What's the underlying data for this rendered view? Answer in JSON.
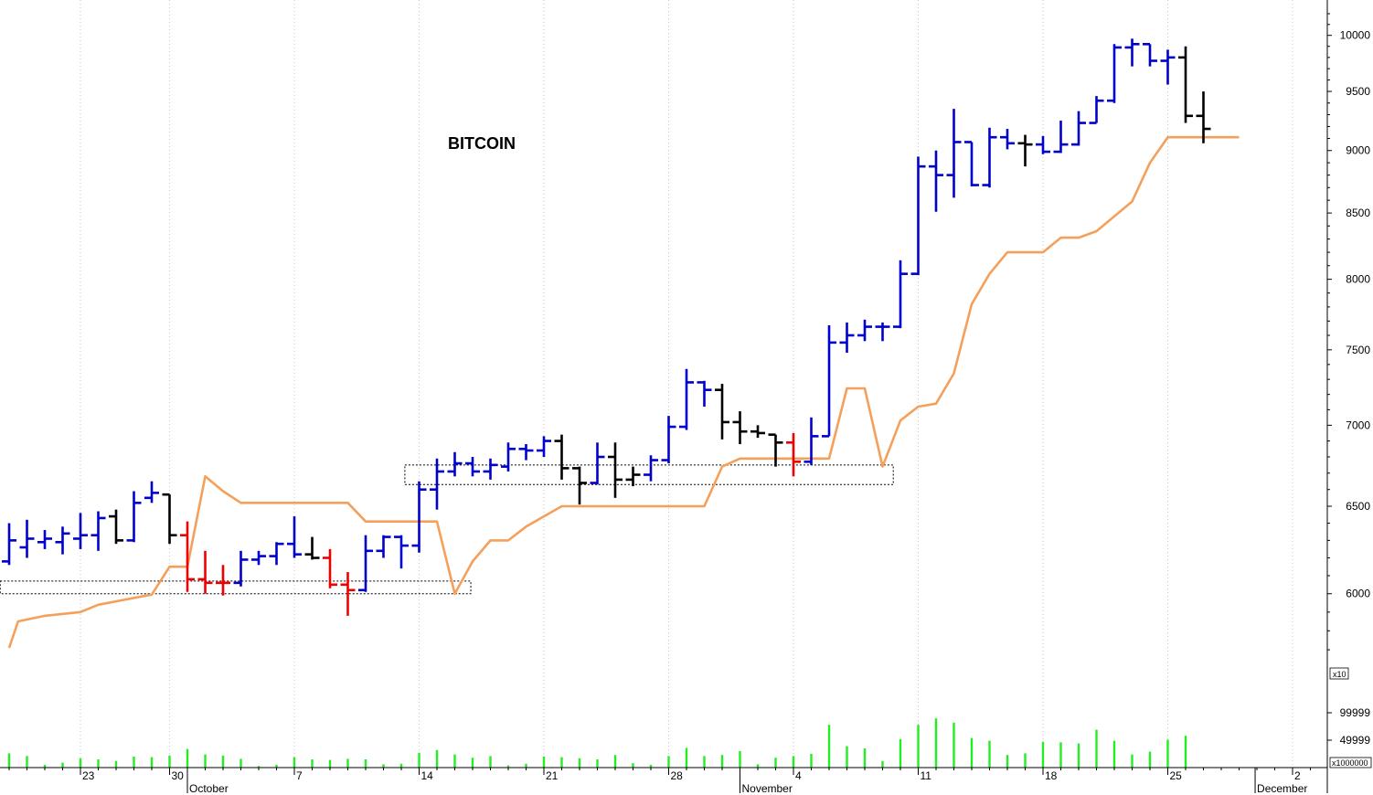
{
  "colors": {
    "up": "#0000cc",
    "down": "#ee0000",
    "neutral": "#000000",
    "trailing_stop": "#f5a05a",
    "volume": "#22ee22",
    "grid": "#c8c8c8",
    "zone_border": "#000000"
  },
  "chart_data": {
    "type": "ohlc-bar",
    "title": "BITCOIN",
    "price_axis": {
      "scale": "log",
      "ylim": [
        5620,
        10260
      ],
      "ticks": [
        6000,
        6500,
        7000,
        7500,
        8000,
        8500,
        9000,
        9500,
        10000
      ]
    },
    "volume_axis": {
      "multiplier_label": "x10",
      "unit_label": "x1000000",
      "ylim": [
        0,
        175000
      ],
      "ticks": [
        {
          "value": 49999,
          "label": "49999"
        },
        {
          "value": 99999,
          "label": "99999"
        }
      ]
    },
    "date_axis": {
      "day_ticks": [
        {
          "bar": 4,
          "label": "23"
        },
        {
          "bar": 9,
          "label": "30"
        },
        {
          "bar": 16,
          "label": "7"
        },
        {
          "bar": 23,
          "label": "14"
        },
        {
          "bar": 30,
          "label": "21"
        },
        {
          "bar": 37,
          "label": "28"
        },
        {
          "bar": 44,
          "label": "4"
        },
        {
          "bar": 51,
          "label": "11"
        },
        {
          "bar": 58,
          "label": "18"
        },
        {
          "bar": 65,
          "label": "25"
        },
        {
          "bar": 72,
          "label": "2"
        }
      ],
      "month_ticks": [
        {
          "bar": 10,
          "label": "October"
        },
        {
          "bar": 41,
          "label": "November"
        },
        {
          "bar": 69.9,
          "label": "December"
        }
      ]
    },
    "bars": [
      {
        "o": 6180,
        "h": 6400,
        "l": 6160,
        "c": 6300,
        "t": "up",
        "v": 26000
      },
      {
        "o": 6260,
        "h": 6420,
        "l": 6200,
        "c": 6310,
        "t": "up",
        "v": 21000
      },
      {
        "o": 6290,
        "h": 6360,
        "l": 6250,
        "c": 6310,
        "t": "up",
        "v": 5000
      },
      {
        "o": 6290,
        "h": 6380,
        "l": 6220,
        "c": 6340,
        "t": "up",
        "v": 9000
      },
      {
        "o": 6310,
        "h": 6460,
        "l": 6250,
        "c": 6330,
        "t": "up",
        "v": 17000
      },
      {
        "o": 6330,
        "h": 6470,
        "l": 6240,
        "c": 6430,
        "t": "up",
        "v": 15000
      },
      {
        "o": 6440,
        "h": 6480,
        "l": 6280,
        "c": 6300,
        "t": "neutral",
        "v": 12000
      },
      {
        "o": 6300,
        "h": 6590,
        "l": 6290,
        "c": 6520,
        "t": "up",
        "v": 20000
      },
      {
        "o": 6550,
        "h": 6650,
        "l": 6520,
        "c": 6580,
        "t": "up",
        "v": 19000
      },
      {
        "o": 6570,
        "h": 6570,
        "l": 6280,
        "c": 6330,
        "t": "neutral",
        "v": 22000
      },
      {
        "o": 6330,
        "h": 6410,
        "l": 6010,
        "c": 6080,
        "t": "down",
        "v": 34000
      },
      {
        "o": 6080,
        "h": 6240,
        "l": 6000,
        "c": 6060,
        "t": "down",
        "v": 24000
      },
      {
        "o": 6060,
        "h": 6160,
        "l": 5990,
        "c": 6060,
        "t": "down",
        "v": 22000
      },
      {
        "o": 6060,
        "h": 6240,
        "l": 6040,
        "c": 6190,
        "t": "up",
        "v": 16000
      },
      {
        "o": 6190,
        "h": 6240,
        "l": 6160,
        "c": 6210,
        "t": "up",
        "v": 3000
      },
      {
        "o": 6210,
        "h": 6290,
        "l": 6160,
        "c": 6280,
        "t": "up",
        "v": 5000
      },
      {
        "o": 6280,
        "h": 6440,
        "l": 6200,
        "c": 6220,
        "t": "up",
        "v": 19000
      },
      {
        "o": 6220,
        "h": 6320,
        "l": 6190,
        "c": 6200,
        "t": "neutral",
        "v": 15000
      },
      {
        "o": 6200,
        "h": 6250,
        "l": 6030,
        "c": 6050,
        "t": "down",
        "v": 14000
      },
      {
        "o": 6050,
        "h": 6120,
        "l": 5880,
        "c": 6020,
        "t": "down",
        "v": 16000
      },
      {
        "o": 6020,
        "h": 6330,
        "l": 6010,
        "c": 6240,
        "t": "up",
        "v": 15000
      },
      {
        "o": 6240,
        "h": 6330,
        "l": 6200,
        "c": 6320,
        "t": "up",
        "v": 6000
      },
      {
        "o": 6320,
        "h": 6330,
        "l": 6140,
        "c": 6270,
        "t": "up",
        "v": 7000
      },
      {
        "o": 6270,
        "h": 6650,
        "l": 6230,
        "c": 6600,
        "t": "up",
        "v": 27000
      },
      {
        "o": 6600,
        "h": 6790,
        "l": 6480,
        "c": 6710,
        "t": "up",
        "v": 32000
      },
      {
        "o": 6710,
        "h": 6830,
        "l": 6680,
        "c": 6760,
        "t": "up",
        "v": 24000
      },
      {
        "o": 6760,
        "h": 6800,
        "l": 6680,
        "c": 6710,
        "t": "up",
        "v": 18000
      },
      {
        "o": 6710,
        "h": 6790,
        "l": 6660,
        "c": 6750,
        "t": "up",
        "v": 21000
      },
      {
        "o": 6740,
        "h": 6890,
        "l": 6710,
        "c": 6850,
        "t": "up",
        "v": 4000
      },
      {
        "o": 6850,
        "h": 6880,
        "l": 6780,
        "c": 6840,
        "t": "up",
        "v": 7000
      },
      {
        "o": 6840,
        "h": 6930,
        "l": 6800,
        "c": 6900,
        "t": "up",
        "v": 20000
      },
      {
        "o": 6900,
        "h": 6940,
        "l": 6660,
        "c": 6730,
        "t": "neutral",
        "v": 19000
      },
      {
        "o": 6730,
        "h": 6740,
        "l": 6510,
        "c": 6640,
        "t": "neutral",
        "v": 17000
      },
      {
        "o": 6640,
        "h": 6890,
        "l": 6630,
        "c": 6800,
        "t": "up",
        "v": 15000
      },
      {
        "o": 6800,
        "h": 6890,
        "l": 6550,
        "c": 6660,
        "t": "neutral",
        "v": 23000
      },
      {
        "o": 6660,
        "h": 6740,
        "l": 6620,
        "c": 6690,
        "t": "neutral",
        "v": 8000
      },
      {
        "o": 6690,
        "h": 6810,
        "l": 6650,
        "c": 6780,
        "t": "up",
        "v": 5000
      },
      {
        "o": 6780,
        "h": 7060,
        "l": 6760,
        "c": 6990,
        "t": "up",
        "v": 21000
      },
      {
        "o": 6990,
        "h": 7370,
        "l": 6970,
        "c": 7280,
        "t": "up",
        "v": 36000
      },
      {
        "o": 7280,
        "h": 7290,
        "l": 7120,
        "c": 7230,
        "t": "up",
        "v": 21000
      },
      {
        "o": 7230,
        "h": 7270,
        "l": 6910,
        "c": 7020,
        "t": "neutral",
        "v": 23000
      },
      {
        "o": 7020,
        "h": 7090,
        "l": 6880,
        "c": 6960,
        "t": "neutral",
        "v": 30000
      },
      {
        "o": 6960,
        "h": 7000,
        "l": 6920,
        "c": 6950,
        "t": "neutral",
        "v": 6000
      },
      {
        "o": 6940,
        "h": 6940,
        "l": 6740,
        "c": 6890,
        "t": "neutral",
        "v": 18000
      },
      {
        "o": 6890,
        "h": 6950,
        "l": 6680,
        "c": 6770,
        "t": "down",
        "v": 21000
      },
      {
        "o": 6770,
        "h": 7050,
        "l": 6750,
        "c": 6930,
        "t": "up",
        "v": 25000
      },
      {
        "o": 6930,
        "h": 7670,
        "l": 6930,
        "c": 7550,
        "t": "up",
        "v": 78000
      },
      {
        "o": 7550,
        "h": 7690,
        "l": 7480,
        "c": 7600,
        "t": "up",
        "v": 39000
      },
      {
        "o": 7600,
        "h": 7710,
        "l": 7560,
        "c": 7660,
        "t": "up",
        "v": 35000
      },
      {
        "o": 7660,
        "h": 7690,
        "l": 7560,
        "c": 7660,
        "t": "up",
        "v": 12000
      },
      {
        "o": 7660,
        "h": 8140,
        "l": 7650,
        "c": 8040,
        "t": "up",
        "v": 52000
      },
      {
        "o": 8040,
        "h": 8950,
        "l": 8030,
        "c": 8870,
        "t": "up",
        "v": 78000
      },
      {
        "o": 8870,
        "h": 9000,
        "l": 8510,
        "c": 8800,
        "t": "up",
        "v": 90000
      },
      {
        "o": 8800,
        "h": 9350,
        "l": 8620,
        "c": 9070,
        "t": "up",
        "v": 82000
      },
      {
        "o": 9070,
        "h": 9070,
        "l": 8710,
        "c": 8720,
        "t": "up",
        "v": 54000
      },
      {
        "o": 8720,
        "h": 9190,
        "l": 8700,
        "c": 9110,
        "t": "up",
        "v": 49000
      },
      {
        "o": 9110,
        "h": 9180,
        "l": 9010,
        "c": 9060,
        "t": "up",
        "v": 23000
      },
      {
        "o": 9060,
        "h": 9130,
        "l": 8870,
        "c": 9050,
        "t": "neutral",
        "v": 26000
      },
      {
        "o": 9050,
        "h": 9120,
        "l": 8970,
        "c": 8990,
        "t": "up",
        "v": 47000
      },
      {
        "o": 8990,
        "h": 9250,
        "l": 8980,
        "c": 9050,
        "t": "up",
        "v": 46000
      },
      {
        "o": 9050,
        "h": 9330,
        "l": 9040,
        "c": 9230,
        "t": "up",
        "v": 44000
      },
      {
        "o": 9230,
        "h": 9460,
        "l": 9230,
        "c": 9420,
        "t": "up",
        "v": 69000
      },
      {
        "o": 9420,
        "h": 9920,
        "l": 9400,
        "c": 9890,
        "t": "up",
        "v": 49000
      },
      {
        "o": 9890,
        "h": 9970,
        "l": 9720,
        "c": 9920,
        "t": "up",
        "v": 24000
      },
      {
        "o": 9920,
        "h": 9920,
        "l": 9720,
        "c": 9770,
        "t": "up",
        "v": 29000
      },
      {
        "o": 9770,
        "h": 9870,
        "l": 9560,
        "c": 9800,
        "t": "up",
        "v": 51000
      },
      {
        "o": 9800,
        "h": 9900,
        "l": 9230,
        "c": 9290,
        "t": "neutral",
        "v": 58000
      },
      {
        "o": 9290,
        "h": 9500,
        "l": 9060,
        "c": 9180,
        "t": "neutral",
        "v": 0
      }
    ],
    "trailing_stop": [
      [
        0,
        5710
      ],
      [
        0.5,
        5850
      ],
      [
        2,
        5880
      ],
      [
        4,
        5900
      ],
      [
        5,
        5940
      ],
      [
        8,
        5995
      ],
      [
        9,
        6150
      ],
      [
        10,
        6150
      ],
      [
        11,
        6680
      ],
      [
        12,
        6590
      ],
      [
        13,
        6520
      ],
      [
        19,
        6520
      ],
      [
        20,
        6410
      ],
      [
        24,
        6410
      ],
      [
        25,
        6000
      ],
      [
        26,
        6180
      ],
      [
        27,
        6300
      ],
      [
        28,
        6300
      ],
      [
        29,
        6380
      ],
      [
        31,
        6500
      ],
      [
        39,
        6500
      ],
      [
        40,
        6740
      ],
      [
        41,
        6790
      ],
      [
        46,
        6790
      ],
      [
        47,
        7240
      ],
      [
        48,
        7240
      ],
      [
        49,
        6740
      ],
      [
        50,
        7030
      ],
      [
        51,
        7120
      ],
      [
        52,
        7140
      ],
      [
        53,
        7340
      ],
      [
        54,
        7820
      ],
      [
        55,
        8040
      ],
      [
        56,
        8200
      ],
      [
        58,
        8200
      ],
      [
        59,
        8310
      ],
      [
        60,
        8310
      ],
      [
        61,
        8360
      ],
      [
        63,
        8590
      ],
      [
        64,
        8900
      ],
      [
        65,
        9110
      ],
      [
        69,
        9110
      ]
    ],
    "zones": [
      {
        "x_start": -0.5,
        "x_end": 25.9,
        "price_top": 6070,
        "price_bottom": 6000
      },
      {
        "x_start": 22.2,
        "x_end": 49.6,
        "price_top": 6750,
        "price_bottom": 6630
      }
    ]
  }
}
